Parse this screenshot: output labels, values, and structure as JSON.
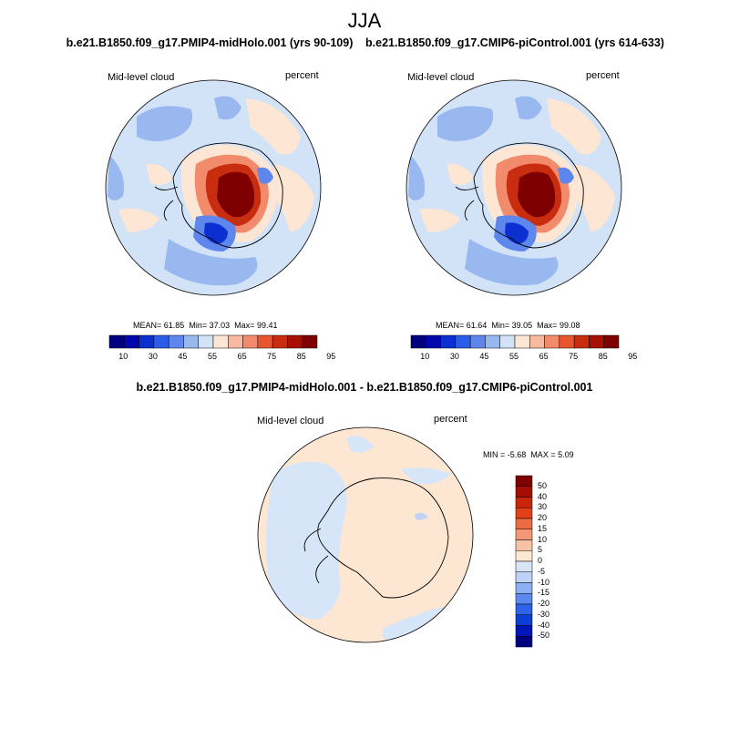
{
  "season": "JJA",
  "colors": {
    "scale12": [
      "#00007f",
      "#0008ad",
      "#0b2fd1",
      "#2c5de8",
      "#5d87ec",
      "#99b8f0",
      "#d2e3f8",
      "#fde6d4",
      "#f7baa1",
      "#f28a6c",
      "#e9552f",
      "#c92d10",
      "#a70f03",
      "#7f0000"
    ],
    "diff": [
      "#00007f",
      "#0016b8",
      "#0a3ed6",
      "#2e64e8",
      "#5b8aef",
      "#8cb0f2",
      "#bdd2f5",
      "#d6e6f8",
      "#fde7d3",
      "#f8c2a6",
      "#f29876",
      "#ec6b44",
      "#e3411a",
      "#c8260b",
      "#a40e03",
      "#7f0000"
    ],
    "coast": "#000000"
  },
  "panels": [
    {
      "case": "b.e21.B1850.f09_g17.PMIP4-midHolo.001 (yrs 90-109)",
      "variable": "Mid-level cloud",
      "units": "percent",
      "stats": {
        "mean_label": "MEAN=",
        "mean": "61.85",
        "min_label": "Min=",
        "min": "37.03",
        "max_label": "Max=",
        "max": "99.41"
      },
      "colorbar_labels": [
        "10",
        "30",
        "45",
        "55",
        "65",
        "75",
        "85",
        "95"
      ]
    },
    {
      "case": "b.e21.B1850.f09_g17.CMIP6-piControl.001 (yrs 614-633)",
      "variable": "Mid-level cloud",
      "units": "percent",
      "stats": {
        "mean_label": "MEAN=",
        "mean": "61.64",
        "min_label": "Min=",
        "min": "39.05",
        "max_label": "Max=",
        "max": "99.08"
      },
      "colorbar_labels": [
        "10",
        "30",
        "45",
        "55",
        "65",
        "75",
        "85",
        "95"
      ]
    }
  ],
  "difference": {
    "title": "b.e21.B1850.f09_g17.PMIP4-midHolo.001 - b.e21.B1850.f09_g17.CMIP6-piControl.001",
    "variable": "Mid-level cloud",
    "units": "percent",
    "stats": {
      "min_label": "MIN =",
      "min": "-5.68",
      "max_label": "MAX =",
      "max": "5.09"
    },
    "colorbar_labels": [
      "50",
      "40",
      "30",
      "20",
      "15",
      "10",
      "5",
      "0",
      "-5",
      "-10",
      "-15",
      "-20",
      "-30",
      "-40",
      "-50"
    ]
  }
}
